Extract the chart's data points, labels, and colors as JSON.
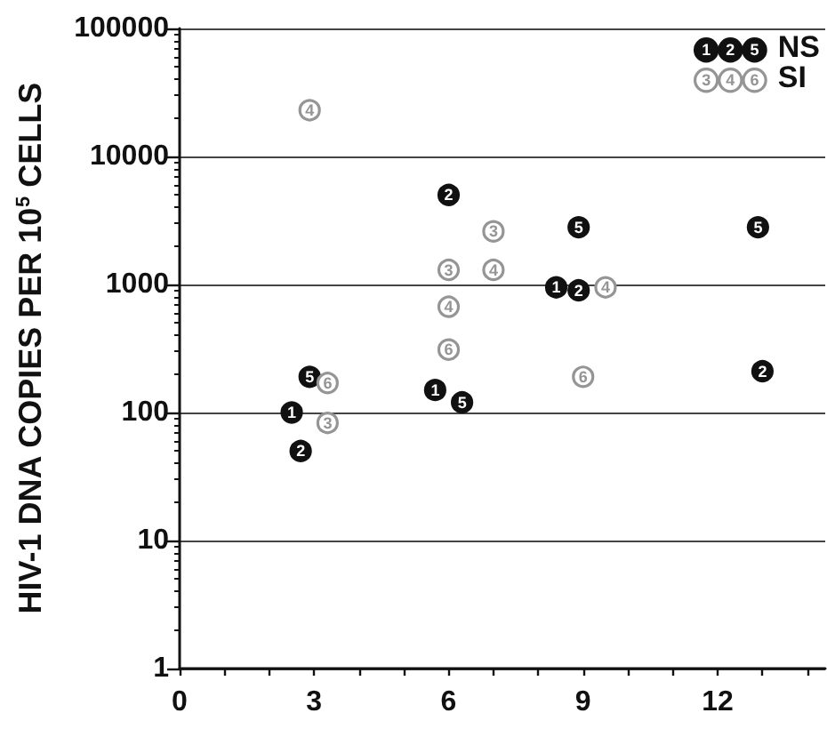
{
  "chart_data": {
    "type": "scatter",
    "ylabel": "HIV-1 DNA COPIES PER 10$^{5}$ CELLS",
    "annotations": [
      "NS",
      "SI"
    ],
    "xlim": [
      0,
      14.4
    ],
    "xticks": [
      0,
      {
        "value": 1,
        "label": null
      },
      {
        "value": 2,
        "label": null
      },
      3,
      {
        "value": 4,
        "label": null
      },
      {
        "value": 5,
        "label": null
      },
      6,
      {
        "value": 7,
        "label": null
      },
      {
        "value": 8,
        "label": null
      },
      9,
      {
        "value": 10,
        "label": null
      },
      {
        "value": 11,
        "label": null
      },
      12,
      {
        "value": 13,
        "label": null
      },
      {
        "value": 14,
        "label": null
      }
    ],
    "ylim": [
      1,
      100000
    ],
    "yticks": [
      1,
      {
        "value": 2,
        "label": null
      },
      {
        "value": 3,
        "label": null
      },
      {
        "value": 4,
        "label": null
      },
      {
        "value": 5,
        "label": null
      },
      {
        "value": 6,
        "label": null
      },
      {
        "value": 7,
        "label": null
      },
      {
        "value": 8,
        "label": null
      },
      {
        "value": 9,
        "label": null
      },
      10,
      {
        "value": 20,
        "label": null
      },
      {
        "value": 30,
        "label": null
      },
      {
        "value": 40,
        "label": null
      },
      {
        "value": 50,
        "label": null
      },
      {
        "value": 60,
        "label": null
      },
      {
        "value": 70,
        "label": null
      },
      {
        "value": 80,
        "label": null
      },
      {
        "value": 90,
        "label": null
      },
      100,
      {
        "value": 200,
        "label": null
      },
      {
        "value": 300,
        "label": null
      },
      {
        "value": 400,
        "label": null
      },
      {
        "value": 500,
        "label": null
      },
      {
        "value": 600,
        "label": null
      },
      {
        "value": 700,
        "label": null
      },
      {
        "value": 800,
        "label": null
      },
      {
        "value": 900,
        "label": null
      },
      1000,
      {
        "value": 2000,
        "label": null
      },
      {
        "value": 3000,
        "label": null
      },
      {
        "value": 4000,
        "label": null
      },
      {
        "value": 5000,
        "label": null
      },
      {
        "value": 6000,
        "label": null
      },
      {
        "value": 7000,
        "label": null
      },
      {
        "value": 8000,
        "label": null
      },
      {
        "value": 9000,
        "label": null
      },
      10000,
      {
        "value": 20000,
        "label": null
      },
      {
        "value": 30000,
        "label": null
      },
      {
        "value": 40000,
        "label": null
      },
      {
        "value": 50000,
        "label": null
      },
      {
        "value": 60000,
        "label": null
      },
      {
        "value": 70000,
        "label": null
      },
      {
        "value": 80000,
        "label": null
      },
      {
        "value": 90000,
        "label": null
      },
      100000
    ],
    "log": true,
    "grid": "y",
    "legend": "top right",
    "marker": "circle",
    "series": [
      {
        "name": "1",
        "color": "#111111",
        "x": [
          2.5,
          5.7,
          8.4
        ],
        "values": [
          100,
          150,
          950
        ]
      },
      {
        "name": "2",
        "color": "#111111",
        "x": [
          2.7,
          6.0,
          8.9,
          13.0
        ],
        "values": [
          50,
          5000,
          900,
          210
        ]
      },
      {
        "name": "5",
        "color": "#111111",
        "x": [
          2.9,
          6.3,
          8.9,
          12.9
        ],
        "values": [
          190,
          120,
          2800,
          2800
        ]
      },
      {
        "name": "3",
        "color": "#959595",
        "x": [
          3.3,
          6.0,
          7.0
        ],
        "values": [
          83,
          1300,
          2600
        ]
      },
      {
        "name": "4",
        "color": "#959595",
        "x": [
          2.9,
          6.0,
          7.0,
          9.5
        ],
        "values": [
          23000,
          670,
          1300,
          950
        ]
      },
      {
        "name": "6",
        "color": "#959595",
        "x": [
          3.3,
          6.0,
          9.0
        ],
        "values": [
          170,
          310,
          190
        ]
      }
    ]
  }
}
